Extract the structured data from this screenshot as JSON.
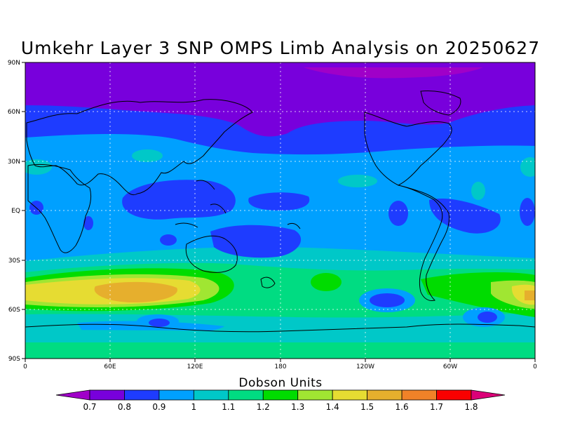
{
  "title": "Umkehr Layer 3 SNP OMPS Limb Analysis on 20250627",
  "map": {
    "lat_labels": [
      "90N",
      "60N",
      "30N",
      "EQ",
      "30S",
      "60S",
      "90S"
    ],
    "lon_labels": [
      "0",
      "60E",
      "120E",
      "180",
      "120W",
      "60W",
      "0"
    ]
  },
  "colorbar": {
    "title": "Dobson Units",
    "levels": [
      "0.7",
      "0.8",
      "0.9",
      "1",
      "1.1",
      "1.2",
      "1.3",
      "1.4",
      "1.5",
      "1.6",
      "1.7",
      "1.8"
    ],
    "colors": [
      "#a000c8",
      "#7800dc",
      "#1e3cff",
      "#00a0ff",
      "#00c8c8",
      "#00dc82",
      "#00dc00",
      "#a0e632",
      "#e6dc32",
      "#e6af2d",
      "#f08228",
      "#fa0000",
      "#dc0078"
    ]
  }
}
